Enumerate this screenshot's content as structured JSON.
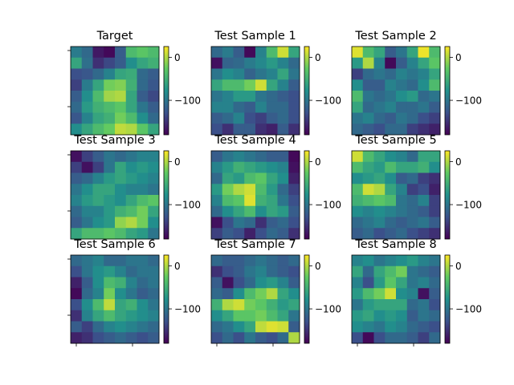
{
  "chart_data": {
    "type": "heatmap",
    "colormap": [
      "#440154",
      "#3b528b",
      "#21918c",
      "#5ec962",
      "#fde725"
    ],
    "value_range": [
      -180,
      25
    ],
    "colorbar_ticks": [
      0,
      -100
    ],
    "colorbar_tick_labels": [
      "0",
      "−100"
    ],
    "panels": [
      {
        "title": "Target",
        "grid": [
          [
            -95,
            -110,
            -165,
            -175,
            -120,
            -40,
            -30,
            -40
          ],
          [
            -60,
            -105,
            -150,
            -135,
            -120,
            -80,
            -60,
            -50
          ],
          [
            -130,
            -125,
            -110,
            -90,
            -60,
            -55,
            -110,
            -120
          ],
          [
            -140,
            -95,
            -60,
            -20,
            -15,
            -50,
            -110,
            -125
          ],
          [
            -120,
            -80,
            -40,
            -5,
            0,
            -60,
            -120,
            -135
          ],
          [
            -110,
            -70,
            -50,
            -40,
            -30,
            -60,
            -100,
            -120
          ],
          [
            -125,
            -90,
            -60,
            -50,
            -20,
            -40,
            -80,
            -110
          ],
          [
            -80,
            -60,
            -40,
            -25,
            5,
            0,
            -30,
            -60
          ]
        ]
      },
      {
        "title": "Test Sample 1",
        "grid": [
          [
            -110,
            -95,
            -120,
            -175,
            -90,
            -40,
            10,
            -60
          ],
          [
            -170,
            -115,
            -110,
            -95,
            -85,
            -70,
            -90,
            -110
          ],
          [
            -100,
            -80,
            -90,
            -115,
            -100,
            -90,
            -60,
            -100
          ],
          [
            -60,
            -40,
            -40,
            -20,
            10,
            -60,
            -90,
            -120
          ],
          [
            -100,
            -90,
            -70,
            -70,
            -100,
            -110,
            -120,
            -130
          ],
          [
            -90,
            -90,
            -110,
            -120,
            -90,
            -110,
            -110,
            -130
          ],
          [
            -120,
            -110,
            -90,
            -130,
            -140,
            -120,
            -110,
            -130
          ],
          [
            -130,
            -150,
            -120,
            -120,
            -150,
            -160,
            -120,
            -150
          ]
        ]
      },
      {
        "title": "Test Sample 2",
        "grid": [
          [
            15,
            -40,
            -60,
            -120,
            -100,
            -60,
            20,
            -40
          ],
          [
            -70,
            0,
            -90,
            -175,
            -120,
            -90,
            -60,
            -30
          ],
          [
            -140,
            -110,
            -100,
            -110,
            -90,
            -100,
            -90,
            -60
          ],
          [
            -80,
            -120,
            -120,
            -90,
            -100,
            -110,
            -80,
            -40
          ],
          [
            -40,
            -100,
            -110,
            -100,
            -80,
            -70,
            -110,
            -100
          ],
          [
            -60,
            -110,
            -100,
            -90,
            -110,
            -110,
            -100,
            -120
          ],
          [
            -100,
            -90,
            -110,
            -120,
            -100,
            -110,
            -130,
            -140
          ],
          [
            -110,
            -120,
            -130,
            -110,
            -110,
            -140,
            -150,
            -160
          ]
        ]
      },
      {
        "title": "Test Sample 3",
        "grid": [
          [
            -170,
            -140,
            -120,
            -100,
            -110,
            -100,
            -90,
            -90
          ],
          [
            -140,
            -170,
            -140,
            -100,
            -60,
            -80,
            -70,
            -80
          ],
          [
            -120,
            -110,
            -90,
            -70,
            -60,
            -70,
            -80,
            -90
          ],
          [
            -100,
            -80,
            -60,
            -60,
            -80,
            -90,
            -90,
            -100
          ],
          [
            -90,
            -70,
            -60,
            -70,
            -80,
            -60,
            -40,
            -30
          ],
          [
            -110,
            -90,
            -90,
            -70,
            -50,
            -40,
            -20,
            -60
          ],
          [
            -120,
            -100,
            -80,
            -70,
            -10,
            0,
            -20,
            -80
          ],
          [
            -60,
            -40,
            -40,
            -30,
            -40,
            -60,
            -70,
            -100
          ]
        ]
      },
      {
        "title": "Test Sample 4",
        "grid": [
          [
            -120,
            -100,
            -90,
            -100,
            -110,
            -120,
            -120,
            -175
          ],
          [
            -90,
            -70,
            -50,
            -60,
            -70,
            -80,
            -90,
            -170
          ],
          [
            -110,
            -60,
            -70,
            -40,
            -30,
            -60,
            -80,
            -160
          ],
          [
            -70,
            -20,
            0,
            10,
            -40,
            -70,
            -110,
            -140
          ],
          [
            -90,
            -40,
            -30,
            15,
            -50,
            -60,
            -100,
            -130
          ],
          [
            -110,
            -80,
            -60,
            -40,
            -80,
            -60,
            -70,
            -120
          ],
          [
            -170,
            -130,
            -100,
            -110,
            -150,
            -120,
            -110,
            -130
          ],
          [
            -140,
            -120,
            -130,
            -160,
            -130,
            -110,
            -120,
            -150
          ]
        ]
      },
      {
        "title": "Test Sample 5",
        "grid": [
          [
            10,
            -40,
            -60,
            -80,
            -90,
            -110,
            -60,
            -60
          ],
          [
            -40,
            -60,
            -70,
            -40,
            -60,
            -60,
            -50,
            -80
          ],
          [
            -80,
            -70,
            -60,
            -80,
            -120,
            -110,
            -140,
            -150
          ],
          [
            -40,
            10,
            0,
            -60,
            -90,
            -140,
            -130,
            -160
          ],
          [
            -50,
            -40,
            -30,
            -40,
            -100,
            -110,
            -90,
            -140
          ],
          [
            -80,
            -90,
            -80,
            -90,
            -100,
            -110,
            -120,
            -140
          ],
          [
            -110,
            -100,
            -90,
            -110,
            -120,
            -110,
            -100,
            -120
          ],
          [
            -120,
            -110,
            -130,
            -120,
            -110,
            -130,
            -140,
            -150
          ]
        ]
      },
      {
        "title": "Test Sample 6",
        "grid": [
          [
            -110,
            -100,
            -90,
            -110,
            -110,
            -100,
            -100,
            -110
          ],
          [
            -130,
            -100,
            -80,
            -70,
            -90,
            -110,
            -100,
            -100
          ],
          [
            -160,
            -120,
            -80,
            -40,
            -50,
            -90,
            -110,
            -100
          ],
          [
            -175,
            -110,
            -90,
            -20,
            -80,
            -100,
            -120,
            -110
          ],
          [
            -130,
            -80,
            -40,
            5,
            -60,
            -50,
            -80,
            -100
          ],
          [
            -150,
            -90,
            -60,
            -40,
            -60,
            -70,
            -80,
            -90
          ],
          [
            -120,
            -140,
            -110,
            -90,
            -80,
            -90,
            -100,
            -110
          ],
          [
            -160,
            -150,
            -130,
            -120,
            -110,
            -120,
            -130,
            -120
          ]
        ]
      },
      {
        "title": "Test Sample 7",
        "grid": [
          [
            -110,
            -120,
            -120,
            -110,
            -100,
            -110,
            -120,
            -110
          ],
          [
            -150,
            -130,
            -120,
            -100,
            -90,
            -110,
            -120,
            -130
          ],
          [
            -120,
            -170,
            -130,
            -110,
            -80,
            -70,
            -90,
            -120
          ],
          [
            -110,
            -120,
            -80,
            -40,
            -20,
            0,
            -60,
            -80
          ],
          [
            -50,
            0,
            10,
            -20,
            -30,
            -50,
            -70,
            -60
          ],
          [
            -80,
            -60,
            -30,
            -30,
            -20,
            -40,
            -60,
            -100
          ],
          [
            -110,
            -100,
            -80,
            -60,
            5,
            15,
            10,
            -120
          ],
          [
            -130,
            -110,
            -130,
            -100,
            -120,
            -130,
            -110,
            0
          ]
        ]
      },
      {
        "title": "Test Sample 8",
        "grid": [
          [
            -90,
            -80,
            -100,
            -90,
            -80,
            -70,
            -90,
            -100
          ],
          [
            -60,
            -110,
            -60,
            -40,
            -20,
            -100,
            -110,
            -120
          ],
          [
            -90,
            -130,
            -70,
            -30,
            -60,
            -100,
            -90,
            -110
          ],
          [
            -70,
            -40,
            -20,
            10,
            -80,
            -90,
            -170,
            -120
          ],
          [
            -100,
            -70,
            -60,
            -60,
            -60,
            -110,
            -100,
            -130
          ],
          [
            -70,
            -60,
            -80,
            -70,
            -80,
            -120,
            -100,
            -110
          ],
          [
            -80,
            -90,
            -100,
            -80,
            -90,
            -110,
            -120,
            -130
          ],
          [
            -130,
            -175,
            -130,
            -110,
            -110,
            -120,
            -140,
            -110
          ]
        ]
      }
    ]
  }
}
